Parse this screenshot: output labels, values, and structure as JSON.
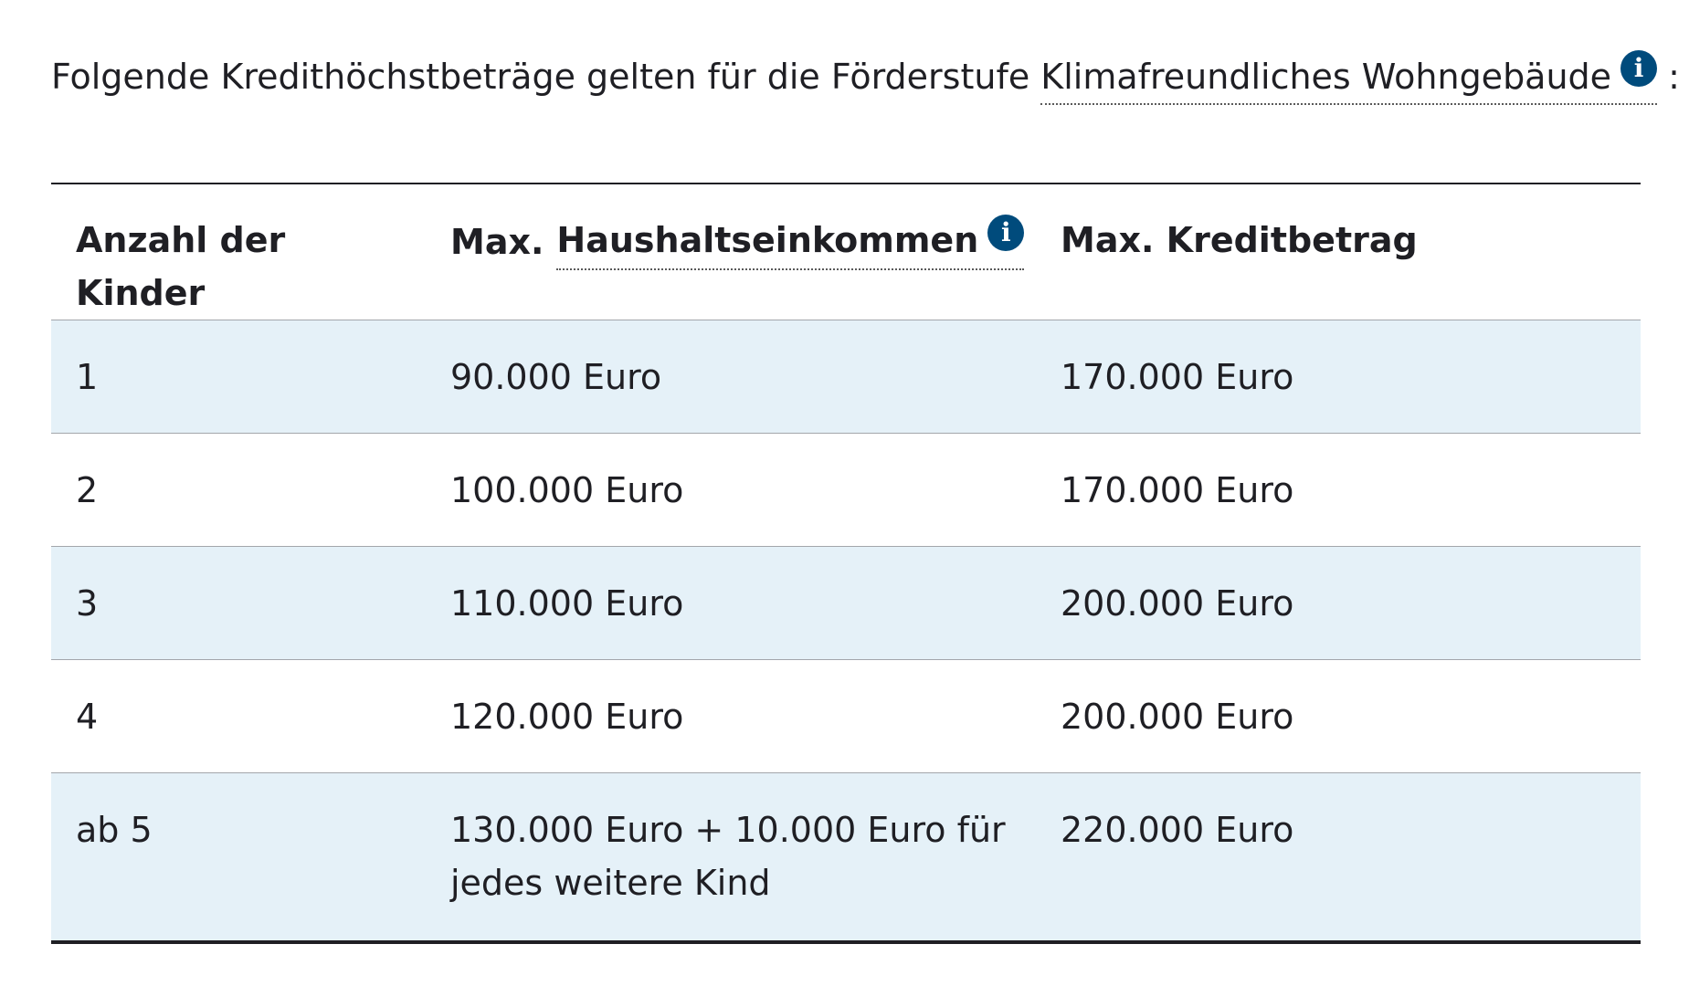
{
  "intro": {
    "text_before": "Folgende Kredithöchstbeträge gelten für die Förderstufe ",
    "link_text": "Klimafreundliches Wohngebäude",
    "info_glyph": "i",
    "text_after": " :"
  },
  "table": {
    "headers": {
      "col1": "Anzahl der Kinder",
      "col2_prefix": "Max.",
      "col2_link": "Haushaltseinkommen",
      "col2_info_glyph": "i",
      "col3": "Max. Kreditbetrag"
    },
    "rows": [
      {
        "kinder": "1",
        "einkommen": "90.000 Euro",
        "kredit": "170.000 Euro"
      },
      {
        "kinder": "2",
        "einkommen": "100.000 Euro",
        "kredit": "170.000 Euro"
      },
      {
        "kinder": "3",
        "einkommen": "110.000 Euro",
        "kredit": "200.000 Euro"
      },
      {
        "kinder": "4",
        "einkommen": "120.000 Euro",
        "kredit": "200.000 Euro"
      },
      {
        "kinder": "ab 5",
        "einkommen": "130.000 Euro + 10.000 Euro für jedes weitere Kind",
        "kredit": "220.000 Euro"
      }
    ]
  },
  "colors": {
    "text": "#1f1f24",
    "info_icon": "#004b7c",
    "row_shade": "#e5f1f8",
    "row_divider": "#a3a6ab"
  }
}
